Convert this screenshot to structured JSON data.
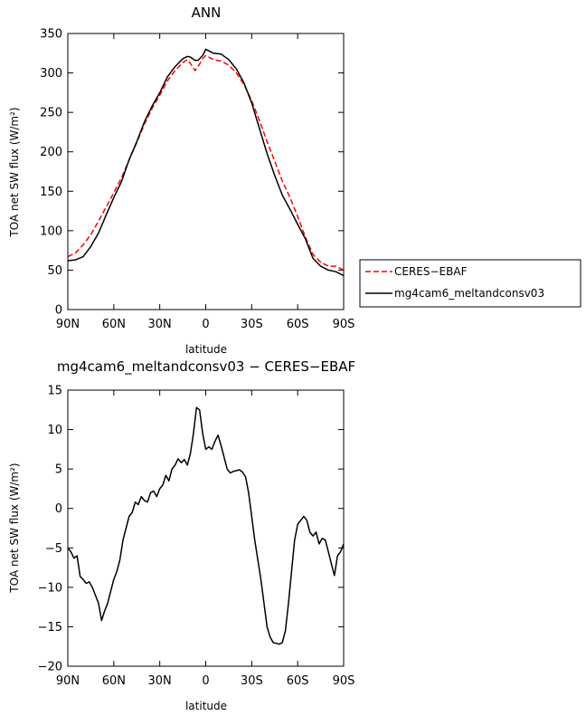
{
  "chart_data": [
    {
      "type": "line",
      "title": "ANN",
      "xlabel": "latitude",
      "ylabel": "TOA net SW flux (W/m²)",
      "xlim": [
        90,
        -90
      ],
      "ylim": [
        0,
        350
      ],
      "x_ticks": [
        90,
        60,
        30,
        0,
        -30,
        -60,
        -90
      ],
      "x_tick_labels": [
        "90N",
        "60N",
        "30N",
        "0",
        "30S",
        "60S",
        "90S"
      ],
      "y_ticks": [
        0,
        50,
        100,
        150,
        200,
        250,
        300,
        350
      ],
      "y_tick_labels": [
        "0",
        "50",
        "100",
        "150",
        "200",
        "250",
        "300",
        "350"
      ],
      "legend_placement": "right",
      "series": [
        {
          "name": "CERES−EBAF",
          "color": "#ff0000",
          "dash": "dashed",
          "x": [
            90,
            85,
            80,
            75,
            70,
            65,
            60,
            55,
            50,
            45,
            40,
            35,
            30,
            25,
            20,
            15,
            12,
            10,
            7,
            5,
            2,
            0,
            -2,
            -5,
            -10,
            -15,
            -20,
            -25,
            -30,
            -35,
            -40,
            -45,
            -50,
            -55,
            -60,
            -65,
            -70,
            -75,
            -80,
            -85,
            -90
          ],
          "values": [
            67,
            72,
            82,
            95,
            112,
            130,
            148,
            167,
            190,
            212,
            235,
            255,
            272,
            290,
            303,
            313,
            317,
            312,
            303,
            308,
            318,
            322,
            320,
            317,
            315,
            310,
            300,
            285,
            265,
            240,
            213,
            188,
            163,
            142,
            118,
            92,
            70,
            60,
            55,
            55,
            50
          ]
        },
        {
          "name": "mg4cam6_meltandconsv03",
          "color": "#000000",
          "dash": "solid",
          "x": [
            90,
            85,
            80,
            75,
            70,
            65,
            60,
            55,
            50,
            45,
            40,
            35,
            30,
            25,
            20,
            15,
            12,
            10,
            7,
            5,
            2,
            0,
            -2,
            -5,
            -10,
            -15,
            -20,
            -25,
            -30,
            -35,
            -40,
            -45,
            -50,
            -55,
            -60,
            -65,
            -70,
            -75,
            -80,
            -85,
            -90
          ],
          "values": [
            62,
            63,
            67,
            80,
            97,
            120,
            142,
            162,
            190,
            213,
            238,
            258,
            275,
            295,
            308,
            318,
            321,
            320,
            316,
            316,
            322,
            330,
            328,
            325,
            324,
            317,
            305,
            287,
            262,
            230,
            198,
            170,
            145,
            127,
            108,
            90,
            65,
            55,
            50,
            48,
            43
          ]
        }
      ]
    },
    {
      "type": "line",
      "title": "mg4cam6_meltandconsv03 − CERES−EBAF",
      "xlabel": "latitude",
      "ylabel": "TOA net SW flux (W/m²)",
      "xlim": [
        90,
        -90
      ],
      "ylim": [
        -20,
        15
      ],
      "x_ticks": [
        90,
        60,
        30,
        0,
        -30,
        -60,
        -90
      ],
      "x_tick_labels": [
        "90N",
        "60N",
        "30N",
        "0",
        "30S",
        "60S",
        "90S"
      ],
      "y_ticks": [
        -20,
        -15,
        -10,
        -5,
        0,
        5,
        10,
        15
      ],
      "y_tick_labels": [
        "−20",
        "−15",
        "−10",
        "−5",
        "0",
        "5",
        "10",
        "15"
      ],
      "series": [
        {
          "color": "#000000",
          "dash": "solid",
          "x": [
            90,
            88,
            86,
            84,
            82,
            80,
            78,
            76,
            74,
            72,
            70,
            68,
            66,
            64,
            62,
            60,
            58,
            56,
            54,
            52,
            50,
            48,
            46,
            44,
            42,
            40,
            38,
            36,
            34,
            32,
            30,
            28,
            26,
            24,
            22,
            20,
            18,
            16,
            14,
            12,
            10,
            8,
            6,
            4,
            2,
            0,
            -2,
            -4,
            -6,
            -8,
            -10,
            -12,
            -14,
            -16,
            -18,
            -20,
            -22,
            -24,
            -26,
            -28,
            -30,
            -32,
            -34,
            -36,
            -38,
            -40,
            -42,
            -44,
            -46,
            -48,
            -50,
            -52,
            -54,
            -56,
            -58,
            -60,
            -62,
            -64,
            -66,
            -68,
            -70,
            -72,
            -74,
            -76,
            -78,
            -80,
            -82,
            -84,
            -86,
            -88,
            -90
          ],
          "values": [
            -5,
            -5.5,
            -6.3,
            -6,
            -8.6,
            -9.0,
            -9.5,
            -9.3,
            -10.0,
            -11.0,
            -12.0,
            -14.2,
            -13.0,
            -12.0,
            -10.5,
            -9.0,
            -8.0,
            -6.5,
            -4.0,
            -2.5,
            -1.0,
            -0.5,
            0.8,
            0.5,
            1.5,
            1.0,
            0.8,
            2.0,
            2.2,
            1.5,
            2.5,
            3.0,
            4.2,
            3.5,
            5.0,
            5.5,
            6.3,
            5.8,
            6.2,
            5.5,
            7.0,
            9.5,
            12.8,
            12.5,
            9.5,
            7.5,
            7.8,
            7.5,
            8.5,
            9.3,
            8.0,
            6.5,
            5.0,
            4.5,
            4.7,
            4.8,
            4.9,
            4.6,
            4.0,
            2.0,
            -1.0,
            -4.0,
            -6.5,
            -9.0,
            -12.0,
            -15.0,
            -16.3,
            -17.0,
            -17.1,
            -17.2,
            -17.0,
            -15.5,
            -12.0,
            -8.0,
            -4.0,
            -2.0,
            -1.5,
            -1.0,
            -1.5,
            -3.0,
            -3.5,
            -3.0,
            -4.5,
            -3.8,
            -4.0,
            -5.5,
            -7.0,
            -8.5,
            -6.0,
            -5.5,
            -4.5
          ]
        }
      ]
    }
  ]
}
